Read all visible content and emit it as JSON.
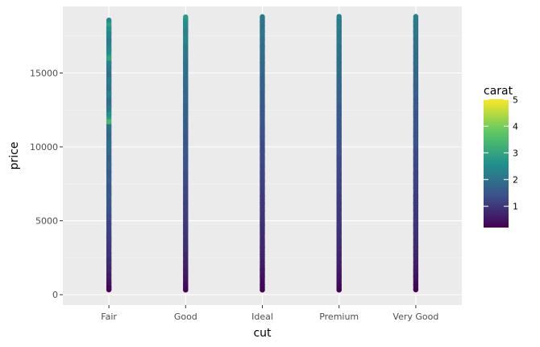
{
  "chart_data": {
    "type": "scatter",
    "title": "",
    "xlabel": "cut",
    "ylabel": "price",
    "categories": [
      "Fair",
      "Good",
      "Ideal",
      "Premium",
      "Very Good"
    ],
    "ylim": [
      -700,
      19500
    ],
    "y_ticks": [
      0,
      5000,
      10000,
      15000
    ],
    "y_tick_labels": [
      "0",
      "5000",
      "10000",
      "15000"
    ],
    "price_range": [
      326,
      18823
    ],
    "grid": true,
    "panel_background": "#ebebeb",
    "colorbar": {
      "title": "carat",
      "range": [
        0.2,
        5.01
      ],
      "ticks": [
        1,
        2,
        3,
        4,
        5
      ],
      "tick_labels": [
        "1",
        "2",
        "3",
        "4",
        "5"
      ],
      "palette": "viridis",
      "colors": [
        "#440154",
        "#3b528b",
        "#21918c",
        "#5ec962",
        "#fde725"
      ],
      "placement": "right"
    },
    "series": [
      {
        "category": "Fair",
        "points": [
          {
            "price": 18574,
            "carat": 2.5
          },
          {
            "price": 18307,
            "carat": 2.9
          },
          {
            "price": 18000,
            "carat": 2.6
          },
          {
            "price": 17700,
            "carat": 2.4
          },
          {
            "price": 17200,
            "carat": 2.2
          },
          {
            "price": 16500,
            "carat": 2.5
          },
          {
            "price": 16000,
            "carat": 3.0
          },
          {
            "price": 15700,
            "carat": 2.3
          },
          {
            "price": 15300,
            "carat": 2.1
          },
          {
            "price": 14900,
            "carat": 2.0
          },
          {
            "price": 14500,
            "carat": 2.2
          },
          {
            "price": 14000,
            "carat": 2.0
          },
          {
            "price": 13600,
            "carat": 2.3
          },
          {
            "price": 13100,
            "carat": 1.9
          },
          {
            "price": 12700,
            "carat": 2.1
          },
          {
            "price": 12200,
            "carat": 2.6
          },
          {
            "price": 11700,
            "carat": 3.4
          },
          {
            "price": 11400,
            "carat": 2.0
          },
          {
            "price": 10800,
            "carat": 1.8
          },
          {
            "price": 10300,
            "carat": 2.0
          },
          {
            "price": 9800,
            "carat": 1.9
          },
          {
            "price": 9300,
            "carat": 1.7
          },
          {
            "price": 8800,
            "carat": 1.8
          },
          {
            "price": 8300,
            "carat": 1.6
          },
          {
            "price": 7800,
            "carat": 1.7
          },
          {
            "price": 7300,
            "carat": 1.5
          },
          {
            "price": 6800,
            "carat": 1.6
          },
          {
            "price": 6300,
            "carat": 1.5
          },
          {
            "price": 5800,
            "carat": 1.4
          },
          {
            "price": 5300,
            "carat": 1.3
          },
          {
            "price": 4800,
            "carat": 1.2
          },
          {
            "price": 4300,
            "carat": 1.15
          },
          {
            "price": 3800,
            "carat": 1.1
          },
          {
            "price": 3300,
            "carat": 1.0
          },
          {
            "price": 2800,
            "carat": 0.95
          },
          {
            "price": 2300,
            "carat": 0.85
          },
          {
            "price": 1800,
            "carat": 0.75
          },
          {
            "price": 1300,
            "carat": 0.6
          },
          {
            "price": 800,
            "carat": 0.45
          },
          {
            "price": 500,
            "carat": 0.3
          },
          {
            "price": 337,
            "carat": 0.22
          }
        ]
      },
      {
        "category": "Good",
        "points": [
          {
            "price": 18788,
            "carat": 2.8
          },
          {
            "price": 18500,
            "carat": 2.6
          },
          {
            "price": 18200,
            "carat": 2.5
          },
          {
            "price": 17800,
            "carat": 2.3
          },
          {
            "price": 17300,
            "carat": 2.4
          },
          {
            "price": 16800,
            "carat": 2.2
          },
          {
            "price": 16200,
            "carat": 2.1
          },
          {
            "price": 15700,
            "carat": 2.0
          },
          {
            "price": 15200,
            "carat": 2.0
          },
          {
            "price": 14700,
            "carat": 1.9
          },
          {
            "price": 14200,
            "carat": 1.9
          },
          {
            "price": 13700,
            "carat": 1.8
          },
          {
            "price": 13200,
            "carat": 1.8
          },
          {
            "price": 12700,
            "carat": 1.7
          },
          {
            "price": 12200,
            "carat": 1.7
          },
          {
            "price": 11700,
            "carat": 1.6
          },
          {
            "price": 11200,
            "carat": 1.6
          },
          {
            "price": 10700,
            "carat": 1.5
          },
          {
            "price": 10200,
            "carat": 1.5
          },
          {
            "price": 9700,
            "carat": 1.5
          },
          {
            "price": 9200,
            "carat": 1.4
          },
          {
            "price": 8700,
            "carat": 1.4
          },
          {
            "price": 8200,
            "carat": 1.3
          },
          {
            "price": 7700,
            "carat": 1.3
          },
          {
            "price": 7200,
            "carat": 1.2
          },
          {
            "price": 6700,
            "carat": 1.2
          },
          {
            "price": 6200,
            "carat": 1.1
          },
          {
            "price": 5700,
            "carat": 1.1
          },
          {
            "price": 5200,
            "carat": 1.05
          },
          {
            "price": 4700,
            "carat": 1.0
          },
          {
            "price": 4200,
            "carat": 0.95
          },
          {
            "price": 3700,
            "carat": 0.9
          },
          {
            "price": 3200,
            "carat": 0.85
          },
          {
            "price": 2700,
            "carat": 0.75
          },
          {
            "price": 2200,
            "carat": 0.7
          },
          {
            "price": 1700,
            "carat": 0.6
          },
          {
            "price": 1200,
            "carat": 0.5
          },
          {
            "price": 700,
            "carat": 0.35
          },
          {
            "price": 327,
            "carat": 0.23
          }
        ]
      },
      {
        "category": "Ideal",
        "points": [
          {
            "price": 18806,
            "carat": 2.2
          },
          {
            "price": 18500,
            "carat": 2.1
          },
          {
            "price": 18200,
            "carat": 2.0
          },
          {
            "price": 17800,
            "carat": 2.1
          },
          {
            "price": 17300,
            "carat": 2.0
          },
          {
            "price": 16800,
            "carat": 1.9
          },
          {
            "price": 16200,
            "carat": 1.9
          },
          {
            "price": 15700,
            "carat": 1.8
          },
          {
            "price": 15200,
            "carat": 1.8
          },
          {
            "price": 14700,
            "carat": 1.7
          },
          {
            "price": 14200,
            "carat": 1.7
          },
          {
            "price": 13700,
            "carat": 1.6
          },
          {
            "price": 13200,
            "carat": 1.6
          },
          {
            "price": 12700,
            "carat": 1.5
          },
          {
            "price": 12200,
            "carat": 1.5
          },
          {
            "price": 11700,
            "carat": 1.5
          },
          {
            "price": 11200,
            "carat": 1.4
          },
          {
            "price": 10700,
            "carat": 1.4
          },
          {
            "price": 10200,
            "carat": 1.3
          },
          {
            "price": 9700,
            "carat": 1.3
          },
          {
            "price": 9200,
            "carat": 1.3
          },
          {
            "price": 8700,
            "carat": 1.2
          },
          {
            "price": 8200,
            "carat": 1.2
          },
          {
            "price": 7700,
            "carat": 1.15
          },
          {
            "price": 7200,
            "carat": 1.1
          },
          {
            "price": 6700,
            "carat": 1.05
          },
          {
            "price": 6200,
            "carat": 1.0
          },
          {
            "price": 5700,
            "carat": 1.0
          },
          {
            "price": 5200,
            "carat": 0.95
          },
          {
            "price": 4700,
            "carat": 0.9
          },
          {
            "price": 4200,
            "carat": 0.85
          },
          {
            "price": 3700,
            "carat": 0.8
          },
          {
            "price": 3200,
            "carat": 0.75
          },
          {
            "price": 2700,
            "carat": 0.7
          },
          {
            "price": 2200,
            "carat": 0.6
          },
          {
            "price": 1700,
            "carat": 0.5
          },
          {
            "price": 1200,
            "carat": 0.4
          },
          {
            "price": 700,
            "carat": 0.3
          },
          {
            "price": 326,
            "carat": 0.23
          }
        ]
      },
      {
        "category": "Premium",
        "points": [
          {
            "price": 18823,
            "carat": 2.3
          },
          {
            "price": 18500,
            "carat": 2.2
          },
          {
            "price": 18200,
            "carat": 2.2
          },
          {
            "price": 17800,
            "carat": 2.1
          },
          {
            "price": 17300,
            "carat": 2.1
          },
          {
            "price": 16800,
            "carat": 2.0
          },
          {
            "price": 16200,
            "carat": 2.0
          },
          {
            "price": 15700,
            "carat": 1.9
          },
          {
            "price": 15200,
            "carat": 1.9
          },
          {
            "price": 14700,
            "carat": 1.8
          },
          {
            "price": 14200,
            "carat": 1.8
          },
          {
            "price": 13700,
            "carat": 1.7
          },
          {
            "price": 13200,
            "carat": 1.7
          },
          {
            "price": 12700,
            "carat": 1.6
          },
          {
            "price": 12200,
            "carat": 1.6
          },
          {
            "price": 11700,
            "carat": 1.5
          },
          {
            "price": 11200,
            "carat": 1.5
          },
          {
            "price": 10700,
            "carat": 1.5
          },
          {
            "price": 10200,
            "carat": 1.4
          },
          {
            "price": 9700,
            "carat": 1.4
          },
          {
            "price": 9200,
            "carat": 1.3
          },
          {
            "price": 8700,
            "carat": 1.3
          },
          {
            "price": 8200,
            "carat": 1.25
          },
          {
            "price": 7700,
            "carat": 1.2
          },
          {
            "price": 7200,
            "carat": 1.15
          },
          {
            "price": 6700,
            "carat": 1.1
          },
          {
            "price": 6200,
            "carat": 1.05
          },
          {
            "price": 5700,
            "carat": 1.0
          },
          {
            "price": 5200,
            "carat": 1.0
          },
          {
            "price": 4700,
            "carat": 0.95
          },
          {
            "price": 4200,
            "carat": 0.9
          },
          {
            "price": 3700,
            "carat": 0.85
          },
          {
            "price": 3200,
            "carat": 0.8
          },
          {
            "price": 2700,
            "carat": 0.72
          },
          {
            "price": 2200,
            "carat": 0.65
          },
          {
            "price": 1700,
            "carat": 0.55
          },
          {
            "price": 1200,
            "carat": 0.45
          },
          {
            "price": 700,
            "carat": 0.32
          },
          {
            "price": 326,
            "carat": 0.21
          }
        ]
      },
      {
        "category": "Very Good",
        "points": [
          {
            "price": 18818,
            "carat": 2.3
          },
          {
            "price": 18500,
            "carat": 2.2
          },
          {
            "price": 18200,
            "carat": 2.1
          },
          {
            "price": 17800,
            "carat": 2.1
          },
          {
            "price": 17300,
            "carat": 2.0
          },
          {
            "price": 16800,
            "carat": 2.0
          },
          {
            "price": 16200,
            "carat": 1.9
          },
          {
            "price": 15700,
            "carat": 1.9
          },
          {
            "price": 15200,
            "carat": 1.8
          },
          {
            "price": 14700,
            "carat": 1.8
          },
          {
            "price": 14200,
            "carat": 1.7
          },
          {
            "price": 13700,
            "carat": 1.7
          },
          {
            "price": 13200,
            "carat": 1.6
          },
          {
            "price": 12700,
            "carat": 1.6
          },
          {
            "price": 12200,
            "carat": 1.5
          },
          {
            "price": 11700,
            "carat": 1.5
          },
          {
            "price": 11200,
            "carat": 1.5
          },
          {
            "price": 10700,
            "carat": 1.4
          },
          {
            "price": 10200,
            "carat": 1.4
          },
          {
            "price": 9700,
            "carat": 1.3
          },
          {
            "price": 9200,
            "carat": 1.3
          },
          {
            "price": 8700,
            "carat": 1.25
          },
          {
            "price": 8200,
            "carat": 1.2
          },
          {
            "price": 7700,
            "carat": 1.2
          },
          {
            "price": 7200,
            "carat": 1.15
          },
          {
            "price": 6700,
            "carat": 1.1
          },
          {
            "price": 6200,
            "carat": 1.05
          },
          {
            "price": 5700,
            "carat": 1.0
          },
          {
            "price": 5200,
            "carat": 1.0
          },
          {
            "price": 4700,
            "carat": 0.95
          },
          {
            "price": 4200,
            "carat": 0.9
          },
          {
            "price": 3700,
            "carat": 0.85
          },
          {
            "price": 3200,
            "carat": 0.8
          },
          {
            "price": 2700,
            "carat": 0.72
          },
          {
            "price": 2200,
            "carat": 0.65
          },
          {
            "price": 1700,
            "carat": 0.55
          },
          {
            "price": 1200,
            "carat": 0.45
          },
          {
            "price": 700,
            "carat": 0.32
          },
          {
            "price": 336,
            "carat": 0.24
          }
        ]
      }
    ]
  }
}
